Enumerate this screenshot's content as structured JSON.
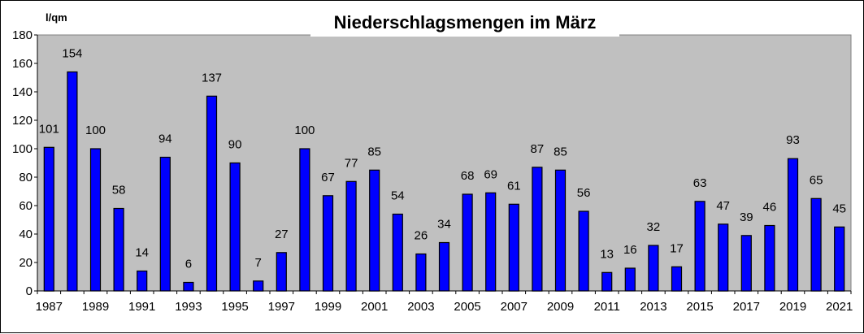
{
  "chart_data": {
    "type": "bar",
    "title": "Niederschlagsmengen im März",
    "ylabel": "l/qm",
    "xlabel": "",
    "ylim": [
      0,
      180
    ],
    "yticks": [
      0,
      20,
      40,
      60,
      80,
      100,
      120,
      140,
      160,
      180
    ],
    "xtick_labels": [
      "1987",
      "1989",
      "1991",
      "1993",
      "1995",
      "1997",
      "1999",
      "2001",
      "2003",
      "2005",
      "2007",
      "2009",
      "2011",
      "2013",
      "2015",
      "2017",
      "2019",
      "2021"
    ],
    "categories": [
      "1987",
      "1988",
      "1989",
      "1990",
      "1991",
      "1992",
      "1993",
      "1994",
      "1995",
      "1996",
      "1997",
      "1998",
      "1999",
      "2000",
      "2001",
      "2002",
      "2003",
      "2004",
      "2005",
      "2006",
      "2007",
      "2008",
      "2009",
      "2010",
      "2011",
      "2012",
      "2013",
      "2014",
      "2015",
      "2016",
      "2017",
      "2018",
      "2019",
      "2020",
      "2021"
    ],
    "values": [
      101,
      154,
      100,
      58,
      14,
      94,
      6,
      137,
      90,
      7,
      27,
      100,
      67,
      77,
      85,
      54,
      26,
      34,
      68,
      69,
      61,
      87,
      85,
      56,
      13,
      16,
      32,
      17,
      63,
      47,
      39,
      46,
      93,
      65,
      45
    ],
    "bar_color": "#0000ff",
    "plot_background": "#c0c0c0",
    "grid": false,
    "legend": "none"
  }
}
